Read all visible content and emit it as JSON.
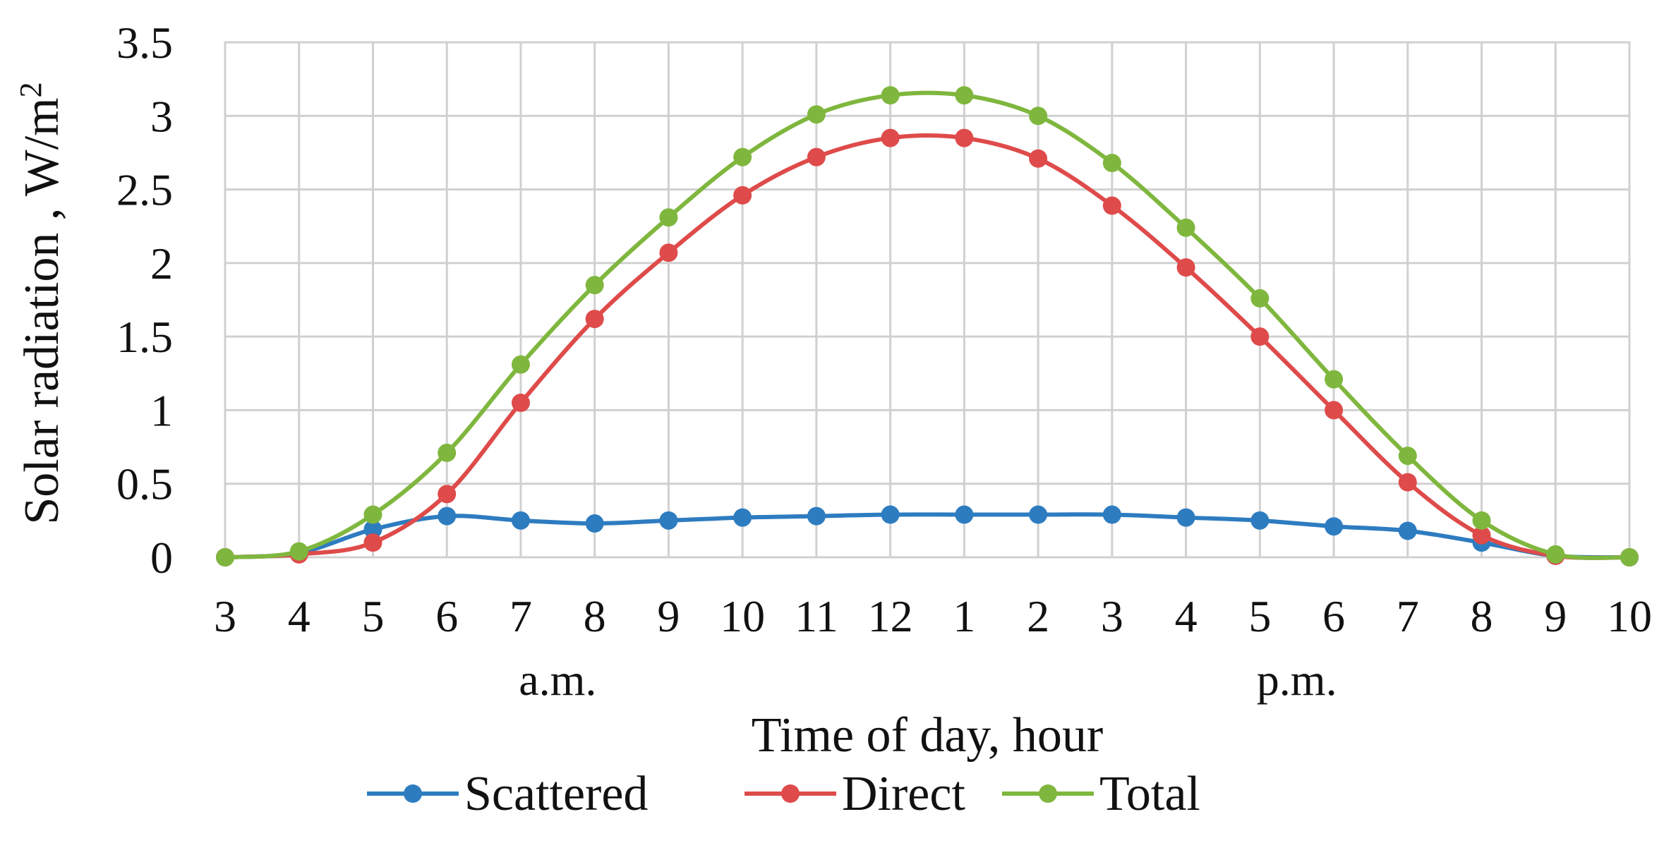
{
  "chart_data": {
    "type": "line",
    "title": "",
    "xlabel": "Time of day,  hour",
    "ylabel": "Solar radiation  ,  W/m",
    "ylabel_superscript": "2",
    "x_tick_labels": [
      "3",
      "4",
      "5",
      "6",
      "7",
      "8",
      "9",
      "10",
      "11",
      "12",
      "1",
      "2",
      "3",
      "4",
      "5",
      "6",
      "7",
      "8",
      "9",
      "10"
    ],
    "period_labels": [
      {
        "text": "a.m.",
        "after_tick_index": 4
      },
      {
        "text": "p.m.",
        "after_tick_index": 14
      }
    ],
    "y_tick_labels": [
      "0",
      "0.5",
      "1",
      "1.5",
      "2",
      "2.5",
      "3",
      "3.5"
    ],
    "ylim": [
      0,
      3.5
    ],
    "grid": true,
    "legend_position": "bottom",
    "series": [
      {
        "name": "Scattered",
        "color": "#2e7cc0",
        "values": [
          0,
          0.03,
          0.19,
          0.28,
          0.25,
          0.23,
          0.25,
          0.27,
          0.28,
          0.29,
          0.29,
          0.29,
          0.29,
          0.27,
          0.25,
          0.21,
          0.18,
          0.1,
          0.01,
          0
        ]
      },
      {
        "name": "Direct",
        "color": "#de4b4a",
        "values": [
          0,
          0.02,
          0.1,
          0.43,
          1.05,
          1.62,
          2.07,
          2.46,
          2.72,
          2.85,
          2.85,
          2.71,
          2.39,
          1.97,
          1.5,
          1.0,
          0.51,
          0.15,
          0.01,
          0
        ]
      },
      {
        "name": "Total",
        "color": "#7fb73e",
        "values": [
          0,
          0.04,
          0.29,
          0.71,
          1.31,
          1.85,
          2.31,
          2.72,
          3.01,
          3.14,
          3.14,
          3.0,
          2.68,
          2.24,
          1.76,
          1.21,
          0.69,
          0.25,
          0.02,
          0
        ]
      }
    ]
  }
}
